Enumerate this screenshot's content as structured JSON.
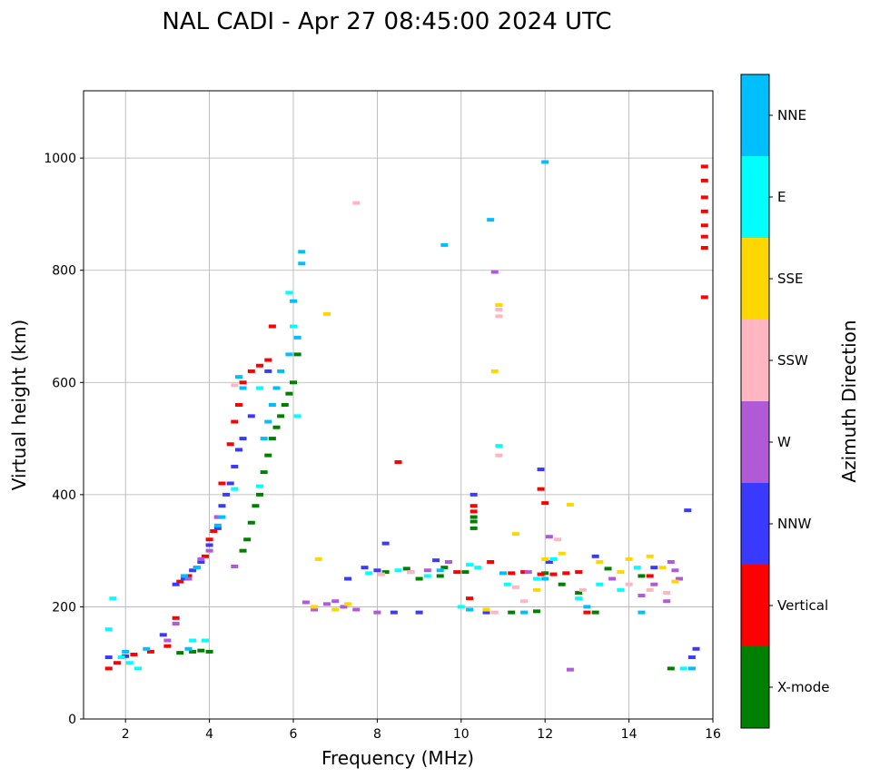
{
  "chart_data": {
    "type": "scatter",
    "title": "NAL CADI - Apr 27 08:45:00 2024 UTC",
    "xlabel": "Frequency (MHz)",
    "ylabel": "Virtual height (km)",
    "xlim": [
      1,
      16
    ],
    "ylim": [
      0,
      1120
    ],
    "xticks": [
      2,
      4,
      6,
      8,
      10,
      12,
      14,
      16
    ],
    "yticks": [
      0,
      200,
      400,
      600,
      800,
      1000
    ],
    "grid": true,
    "colorbar": {
      "label": "Azimuth Direction",
      "categories": [
        {
          "name": "X-mode",
          "color": "#008000"
        },
        {
          "name": "Vertical",
          "color": "#ff0000"
        },
        {
          "name": "NNW",
          "color": "#3a3aff"
        },
        {
          "name": "W",
          "color": "#b05ad8"
        },
        {
          "name": "SSW",
          "color": "#ffb6c1"
        },
        {
          "name": "SSE",
          "color": "#ffd700"
        },
        {
          "name": "E",
          "color": "#00ffff"
        },
        {
          "name": "NNE",
          "color": "#00bfff"
        }
      ]
    },
    "series": [
      {
        "name": "X-mode",
        "points": [
          [
            3.6,
            120
          ],
          [
            3.8,
            122
          ],
          [
            4.0,
            120
          ],
          [
            3.3,
            118
          ],
          [
            10.3,
            340
          ],
          [
            10.3,
            360
          ],
          [
            10.3,
            352
          ],
          [
            6.1,
            650
          ],
          [
            6.0,
            600
          ],
          [
            5.9,
            580
          ],
          [
            5.8,
            560
          ],
          [
            5.7,
            540
          ],
          [
            5.6,
            520
          ],
          [
            5.5,
            500
          ],
          [
            5.4,
            470
          ],
          [
            5.3,
            440
          ],
          [
            5.2,
            400
          ],
          [
            5.1,
            380
          ],
          [
            5.0,
            350
          ],
          [
            4.9,
            320
          ],
          [
            4.8,
            300
          ],
          [
            9.5,
            255
          ],
          [
            9.6,
            270
          ],
          [
            9.0,
            250
          ],
          [
            8.7,
            268
          ],
          [
            10.1,
            262
          ],
          [
            12.4,
            240
          ],
          [
            12.8,
            225
          ],
          [
            13.2,
            190
          ],
          [
            12.0,
            260
          ],
          [
            13.5,
            268
          ],
          [
            14.3,
            255
          ],
          [
            15.0,
            90
          ],
          [
            11.8,
            192
          ],
          [
            11.2,
            190
          ],
          [
            8.2,
            262
          ]
        ]
      },
      {
        "name": "Vertical",
        "points": [
          [
            1.6,
            90
          ],
          [
            1.8,
            100
          ],
          [
            2.2,
            115
          ],
          [
            2.6,
            120
          ],
          [
            3.0,
            130
          ],
          [
            3.2,
            180
          ],
          [
            3.3,
            245
          ],
          [
            3.5,
            255
          ],
          [
            3.7,
            270
          ],
          [
            3.9,
            290
          ],
          [
            4.0,
            320
          ],
          [
            4.1,
            335
          ],
          [
            4.2,
            360
          ],
          [
            4.3,
            420
          ],
          [
            4.5,
            490
          ],
          [
            4.6,
            530
          ],
          [
            4.7,
            560
          ],
          [
            4.8,
            600
          ],
          [
            5.0,
            620
          ],
          [
            5.2,
            630
          ],
          [
            5.4,
            640
          ],
          [
            5.5,
            700
          ],
          [
            8.5,
            458
          ],
          [
            10.3,
            380
          ],
          [
            10.3,
            370
          ],
          [
            10.2,
            215
          ],
          [
            11.2,
            260
          ],
          [
            11.5,
            262
          ],
          [
            11.9,
            258
          ],
          [
            12.2,
            258
          ],
          [
            12.5,
            260
          ],
          [
            12.8,
            262
          ],
          [
            11.9,
            410
          ],
          [
            12.0,
            385
          ],
          [
            10.7,
            280
          ],
          [
            14.5,
            255
          ],
          [
            15.8,
            905
          ],
          [
            15.8,
            840
          ],
          [
            15.8,
            860
          ],
          [
            15.8,
            880
          ],
          [
            15.8,
            930
          ],
          [
            15.8,
            960
          ],
          [
            15.8,
            985
          ],
          [
            15.8,
            752
          ],
          [
            13.0,
            190
          ],
          [
            9.9,
            262
          ]
        ]
      },
      {
        "name": "NNW",
        "points": [
          [
            1.6,
            110
          ],
          [
            2.0,
            112
          ],
          [
            2.9,
            150
          ],
          [
            3.2,
            240
          ],
          [
            3.4,
            250
          ],
          [
            3.6,
            265
          ],
          [
            3.8,
            280
          ],
          [
            4.0,
            310
          ],
          [
            4.2,
            340
          ],
          [
            4.3,
            380
          ],
          [
            4.4,
            400
          ],
          [
            4.5,
            420
          ],
          [
            4.6,
            450
          ],
          [
            4.7,
            480
          ],
          [
            4.8,
            500
          ],
          [
            5.0,
            540
          ],
          [
            5.4,
            620
          ],
          [
            7.3,
            250
          ],
          [
            7.7,
            270
          ],
          [
            8.0,
            265
          ],
          [
            8.2,
            313
          ],
          [
            8.8,
            262
          ],
          [
            9.4,
            283
          ],
          [
            10.3,
            400
          ],
          [
            12.1,
            280
          ],
          [
            13.2,
            290
          ],
          [
            14.6,
            270
          ],
          [
            15.4,
            372
          ],
          [
            15.5,
            110
          ],
          [
            15.6,
            125
          ],
          [
            11.9,
            445
          ],
          [
            9.0,
            190
          ],
          [
            10.6,
            190
          ],
          [
            8.4,
            190
          ]
        ]
      },
      {
        "name": "W",
        "points": [
          [
            3.0,
            140
          ],
          [
            3.2,
            170
          ],
          [
            3.5,
            250
          ],
          [
            3.8,
            285
          ],
          [
            4.0,
            300
          ],
          [
            4.2,
            360
          ],
          [
            6.3,
            208
          ],
          [
            6.8,
            205
          ],
          [
            7.2,
            200
          ],
          [
            7.5,
            195
          ],
          [
            6.5,
            195
          ],
          [
            7.0,
            210
          ],
          [
            8.0,
            190
          ],
          [
            9.2,
            265
          ],
          [
            9.7,
            280
          ],
          [
            10.8,
            797
          ],
          [
            11.6,
            262
          ],
          [
            12.1,
            325
          ],
          [
            12.6,
            88
          ],
          [
            14.3,
            220
          ],
          [
            14.6,
            240
          ],
          [
            15.0,
            280
          ],
          [
            15.1,
            265
          ],
          [
            15.2,
            250
          ],
          [
            14.9,
            210
          ],
          [
            4.6,
            272
          ],
          [
            13.6,
            250
          ]
        ]
      },
      {
        "name": "SSW",
        "points": [
          [
            7.5,
            920
          ],
          [
            10.9,
            730
          ],
          [
            10.9,
            718
          ],
          [
            10.9,
            470
          ],
          [
            10.8,
            190
          ],
          [
            11.5,
            210
          ],
          [
            12.3,
            320
          ],
          [
            12.9,
            230
          ],
          [
            14.0,
            240
          ],
          [
            14.5,
            230
          ],
          [
            14.9,
            225
          ],
          [
            8.1,
            258
          ],
          [
            8.8,
            262
          ],
          [
            11.3,
            235
          ],
          [
            4.6,
            595
          ]
        ]
      },
      {
        "name": "SSE",
        "points": [
          [
            6.8,
            722
          ],
          [
            10.9,
            738
          ],
          [
            10.8,
            620
          ],
          [
            12.6,
            382
          ],
          [
            12.4,
            295
          ],
          [
            13.3,
            280
          ],
          [
            14.0,
            285
          ],
          [
            14.5,
            290
          ],
          [
            14.8,
            270
          ],
          [
            15.1,
            245
          ],
          [
            6.6,
            285
          ],
          [
            6.5,
            200
          ],
          [
            7.0,
            195
          ],
          [
            7.3,
            205
          ],
          [
            10.6,
            195
          ],
          [
            11.3,
            330
          ],
          [
            11.8,
            230
          ],
          [
            13.8,
            262
          ],
          [
            12.0,
            285
          ]
        ]
      },
      {
        "name": "E",
        "points": [
          [
            1.6,
            160
          ],
          [
            1.7,
            215
          ],
          [
            1.9,
            110
          ],
          [
            2.1,
            100
          ],
          [
            2.3,
            90
          ],
          [
            3.6,
            140
          ],
          [
            3.9,
            140
          ],
          [
            5.2,
            590
          ],
          [
            5.9,
            760
          ],
          [
            6.0,
            700
          ],
          [
            10.9,
            487
          ],
          [
            10.2,
            275
          ],
          [
            10.0,
            200
          ],
          [
            10.4,
            270
          ],
          [
            11.1,
            240
          ],
          [
            11.8,
            250
          ],
          [
            12.2,
            285
          ],
          [
            12.8,
            215
          ],
          [
            13.3,
            240
          ],
          [
            13.8,
            230
          ],
          [
            14.2,
            270
          ],
          [
            15.3,
            90
          ],
          [
            9.2,
            255
          ],
          [
            8.5,
            265
          ],
          [
            4.6,
            410
          ],
          [
            5.2,
            415
          ],
          [
            6.1,
            540
          ],
          [
            7.8,
            260
          ]
        ]
      },
      {
        "name": "NNE",
        "points": [
          [
            12.0,
            993
          ],
          [
            10.7,
            890
          ],
          [
            9.6,
            845
          ],
          [
            6.2,
            833
          ],
          [
            6.2,
            812
          ],
          [
            6.0,
            745
          ],
          [
            6.1,
            680
          ],
          [
            5.9,
            650
          ],
          [
            5.7,
            620
          ],
          [
            5.6,
            590
          ],
          [
            5.5,
            560
          ],
          [
            5.4,
            530
          ],
          [
            5.3,
            500
          ],
          [
            4.7,
            610
          ],
          [
            4.8,
            590
          ],
          [
            4.3,
            360
          ],
          [
            4.2,
            345
          ],
          [
            3.7,
            270
          ],
          [
            3.4,
            255
          ],
          [
            2.0,
            120
          ],
          [
            2.5,
            125
          ],
          [
            3.5,
            125
          ],
          [
            10.2,
            195
          ],
          [
            14.3,
            190
          ],
          [
            15.5,
            90
          ],
          [
            9.5,
            265
          ],
          [
            11.5,
            190
          ],
          [
            13.0,
            200
          ],
          [
            11.0,
            260
          ],
          [
            12.0,
            250
          ]
        ]
      }
    ]
  }
}
